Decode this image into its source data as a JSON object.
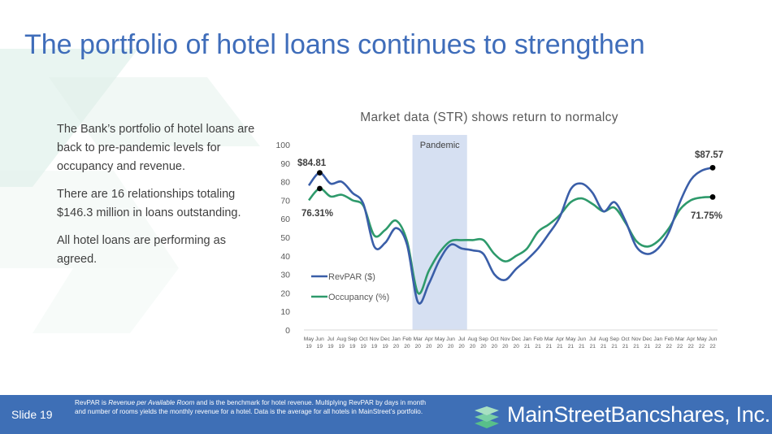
{
  "title": "The portfolio of hotel loans continues to strengthen",
  "bullets": [
    "The Bank’s portfolio of hotel loans are back to pre-pandemic levels for occupancy and revenue.",
    "There are 16 relationships totaling $146.3 million in loans outstanding.",
    "All hotel loans are performing as agreed."
  ],
  "footer": {
    "slide": "Slide 19",
    "note_pre": "RevPAR is ",
    "note_em": "Revenue per Available Room",
    "note_post": " and is the benchmark for hotel revenue. Multiplying RevPAR by days in month and number of rooms yields the monthly revenue for a hotel. Data is the average for all hotels in MainStreet’s portfolio.",
    "logo_text": "MainStreetBancshares, Inc."
  },
  "colors": {
    "title": "#3f6dba",
    "footer": "#3e6fb6",
    "revpar": "#3a5ea8",
    "occupancy": "#2e9a6b",
    "pandemic": "#d6e0f2"
  },
  "chart_data": {
    "type": "line",
    "title": "Market data (STR) shows return to normalcy",
    "ylim": [
      0,
      100
    ],
    "yticks": [
      0,
      10,
      20,
      30,
      40,
      50,
      60,
      70,
      80,
      90,
      100
    ],
    "categories": [
      [
        "May",
        "19"
      ],
      [
        "Jun",
        "19"
      ],
      [
        "Jul",
        "19"
      ],
      [
        "Aug",
        "19"
      ],
      [
        "Sep",
        "19"
      ],
      [
        "Oct",
        "19"
      ],
      [
        "Nov",
        "19"
      ],
      [
        "Dec",
        "19"
      ],
      [
        "Jan",
        "20"
      ],
      [
        "Feb",
        "20"
      ],
      [
        "Mar",
        "20"
      ],
      [
        "Apr",
        "20"
      ],
      [
        "May",
        "20"
      ],
      [
        "Jun",
        "20"
      ],
      [
        "Jul",
        "20"
      ],
      [
        "Aug",
        "20"
      ],
      [
        "Sep",
        "20"
      ],
      [
        "Oct",
        "20"
      ],
      [
        "Nov",
        "20"
      ],
      [
        "Dec",
        "20"
      ],
      [
        "Jan",
        "21"
      ],
      [
        "Feb",
        "21"
      ],
      [
        "Mar",
        "21"
      ],
      [
        "Apr",
        "21"
      ],
      [
        "May",
        "21"
      ],
      [
        "Jun",
        "21"
      ],
      [
        "Jul",
        "21"
      ],
      [
        "Aug",
        "21"
      ],
      [
        "Sep",
        "21"
      ],
      [
        "Oct",
        "21"
      ],
      [
        "Nov",
        "21"
      ],
      [
        "Dec",
        "21"
      ],
      [
        "Jan",
        "22"
      ],
      [
        "Feb",
        "22"
      ],
      [
        "Mar",
        "22"
      ],
      [
        "Apr",
        "22"
      ],
      [
        "May",
        "22"
      ],
      [
        "Jun",
        "22"
      ]
    ],
    "series": [
      {
        "name": "RevPAR ($)",
        "values": [
          78,
          84.81,
          79,
          80,
          74,
          68,
          45,
          47,
          55,
          46,
          15,
          25,
          38,
          46,
          44,
          43,
          41,
          30,
          27,
          33,
          38,
          44,
          52,
          61,
          76,
          79,
          74,
          64,
          69,
          59,
          45,
          41,
          44,
          53,
          69,
          81,
          86,
          87.57
        ]
      },
      {
        "name": "Occupancy (%)",
        "values": [
          70,
          76.31,
          72,
          73,
          70,
          67,
          51,
          54,
          59,
          48,
          20,
          32,
          42,
          48,
          48.5,
          48.5,
          48.5,
          41,
          37,
          40,
          44,
          53,
          57,
          62,
          69,
          71,
          68,
          64,
          66,
          58,
          48,
          45,
          48,
          55,
          65,
          70,
          71.5,
          71.75
        ]
      }
    ],
    "band": {
      "label": "Pandemic",
      "from": "Mar 20",
      "to": "Jul 20"
    },
    "annotations": {
      "revpar_start": "$84.81",
      "revpar_end": "$87.57",
      "occ_start": "76.31%",
      "occ_end": "71.75%"
    },
    "legend": "inside bottom-left",
    "grid": false
  }
}
